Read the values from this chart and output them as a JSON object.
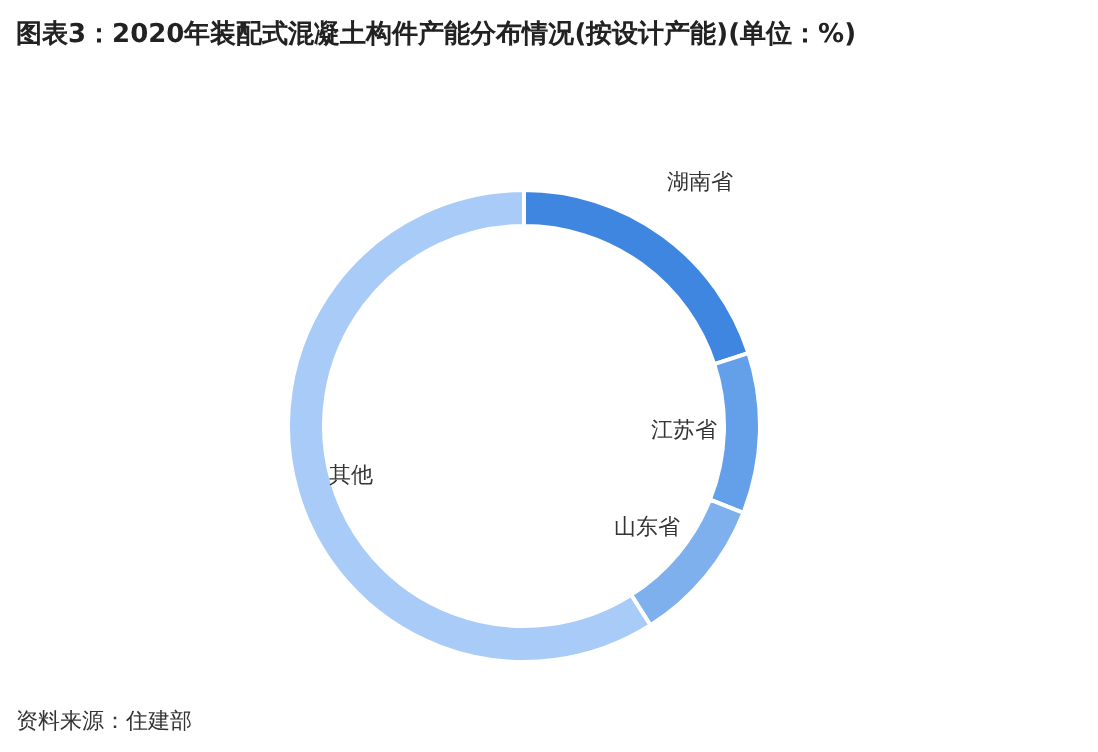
{
  "chart_data": {
    "type": "donut",
    "title": "图表3：2020年装配式混凝土构件产能分布情况(按设计产能)(单位：%)",
    "categories": [
      "湖南省",
      "江苏省",
      "山东省",
      "其他"
    ],
    "values": [
      20,
      11,
      10,
      59
    ],
    "colors": [
      "#3f86e0",
      "#64a0ea",
      "#7fb0ee",
      "#a8cbf7"
    ],
    "annotations": [
      "资料来源：住建部"
    ]
  }
}
